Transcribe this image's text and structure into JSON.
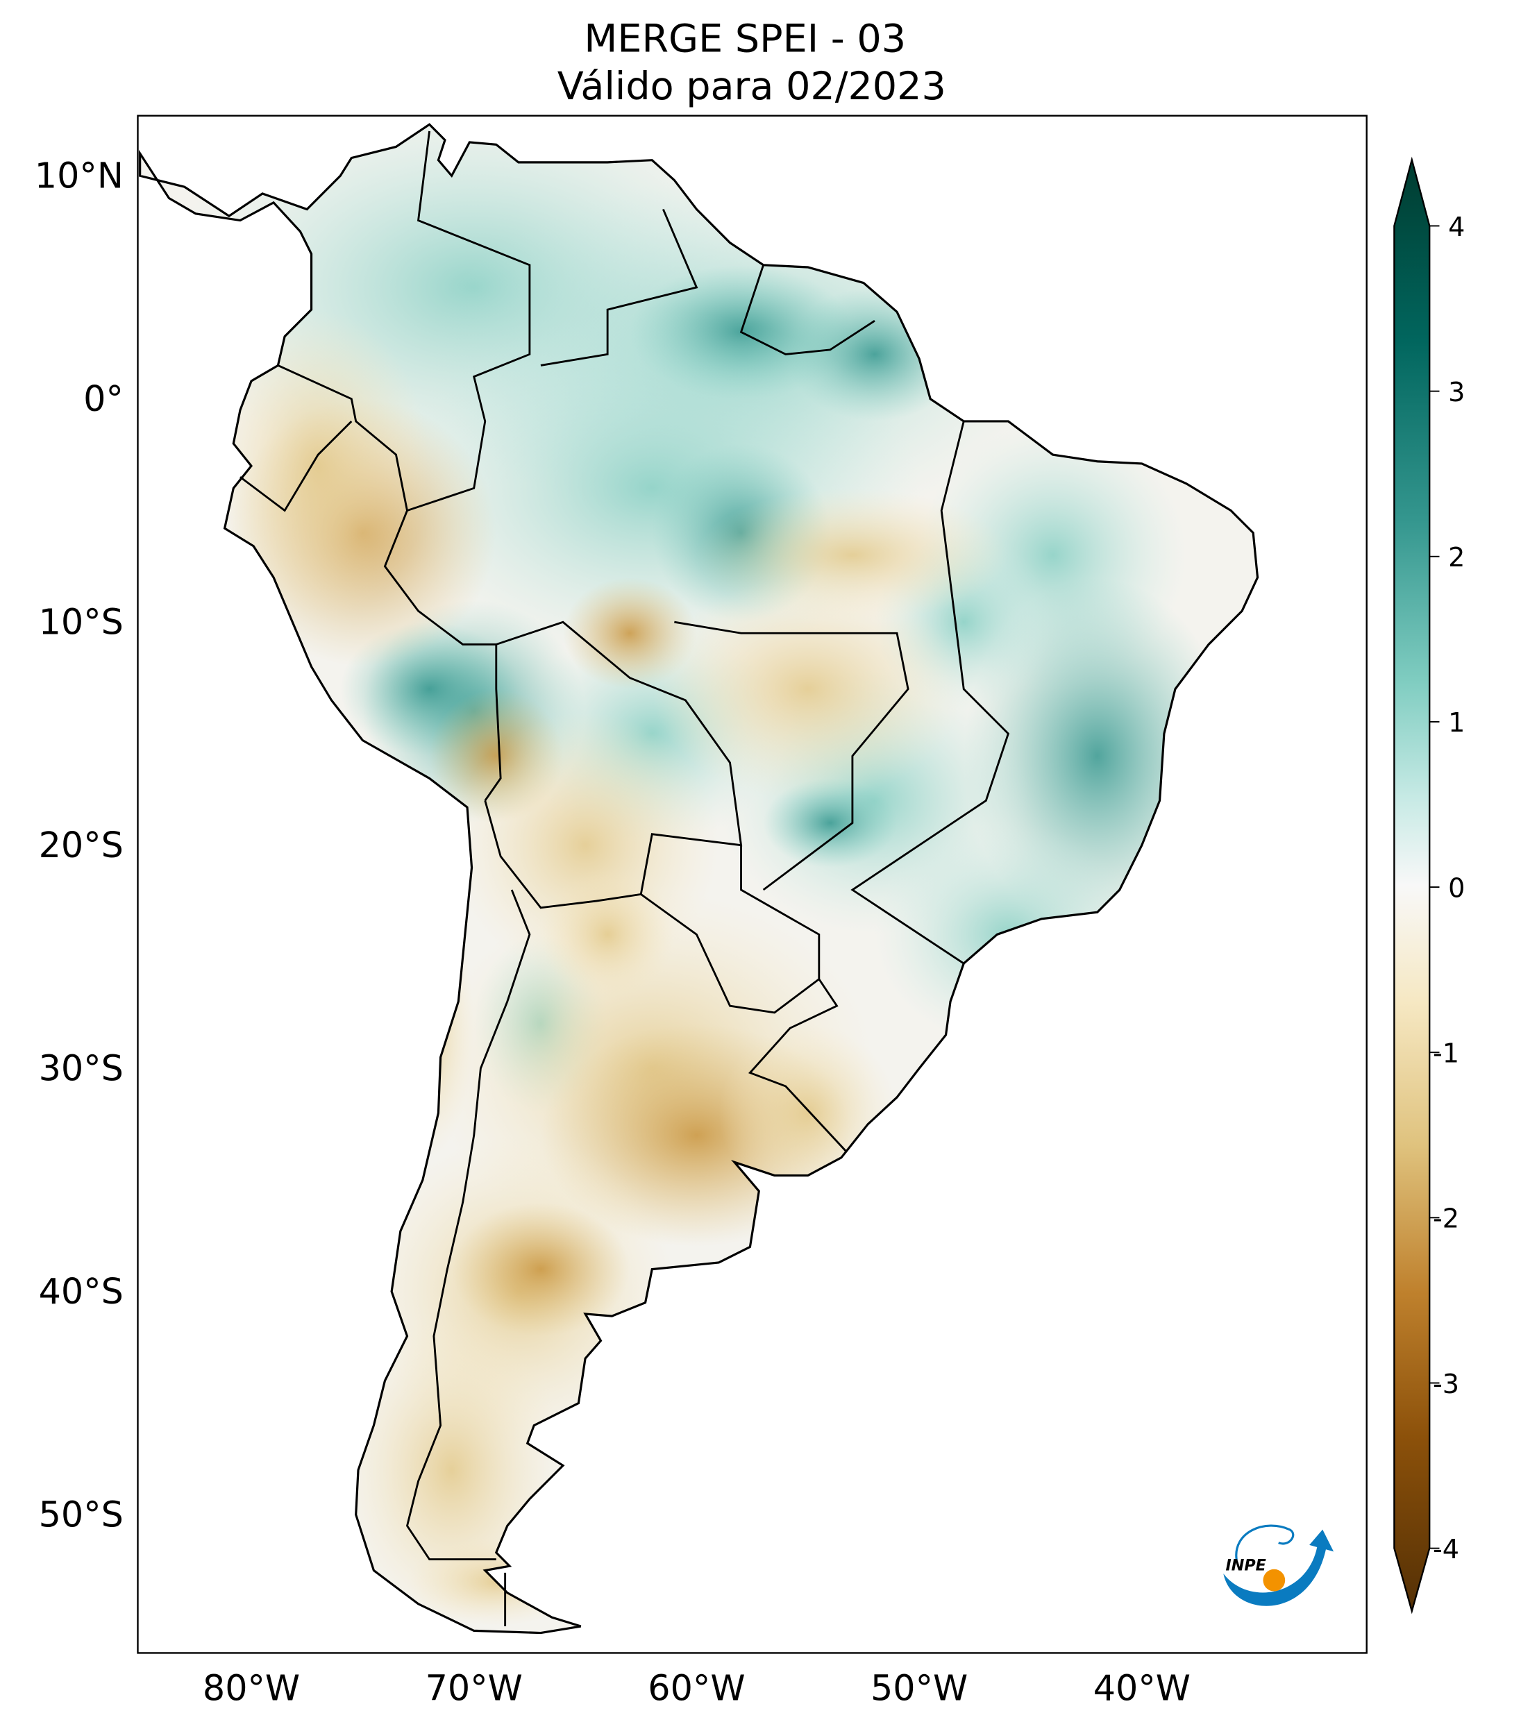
{
  "title": {
    "line1": "MERGE   SPEI - 03",
    "line2": "Válido para 02/2023"
  },
  "axes": {
    "lat_ticks": [
      "10°N",
      "0°",
      "10°S",
      "20°S",
      "30°S",
      "40°S",
      "50°S"
    ],
    "lon_ticks": [
      "80°W",
      "70°W",
      "60°W",
      "50°W",
      "40°W"
    ]
  },
  "colorbar": {
    "ticks": [
      "4",
      "3",
      "2",
      "1",
      "0",
      "-1",
      "-2",
      "-3",
      "-4"
    ],
    "colormap": "BrBG",
    "extend": "both",
    "colors": [
      "#003c30",
      "#01665e",
      "#35978f",
      "#80cdc1",
      "#c7eae5",
      "#f5f5f5",
      "#f6e8c3",
      "#dfc27d",
      "#bf812d",
      "#8c510a",
      "#543005"
    ]
  },
  "logo": {
    "text": "INPE",
    "colors": {
      "blue": "#0a7bc0",
      "orange": "#f39200"
    }
  }
}
